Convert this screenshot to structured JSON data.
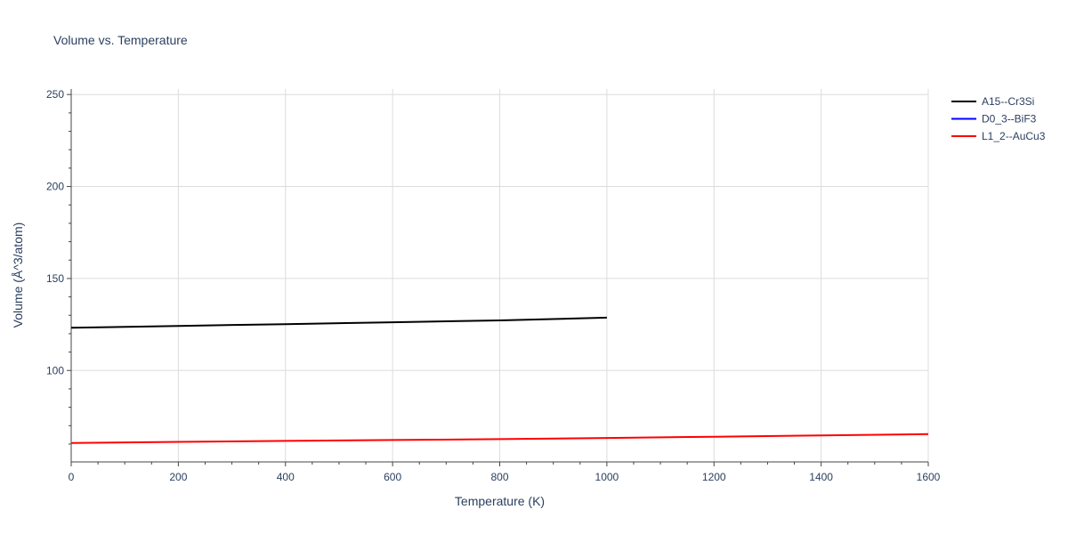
{
  "chart_data": {
    "type": "line",
    "title": "Volume vs. Temperature",
    "xlabel": "Temperature (K)",
    "ylabel": "Volume (Å^3/atom)",
    "xlim": [
      0,
      1600
    ],
    "ylim": [
      50.3,
      253
    ],
    "x_ticks": [
      0,
      200,
      400,
      600,
      800,
      1000,
      1200,
      1400,
      1600
    ],
    "y_ticks": [
      100,
      150,
      200,
      250
    ],
    "grid": true,
    "legend_position": "top-right",
    "series": [
      {
        "name": "A15--Cr3Si",
        "color": "#000000",
        "x": [
          0,
          200,
          400,
          600,
          800,
          1000
        ],
        "y": [
          123.2,
          124.2,
          125.2,
          126.2,
          127.2,
          128.7
        ]
      },
      {
        "name": "D0_3--BiF3",
        "color": "#0000ff",
        "x": [],
        "y": []
      },
      {
        "name": "L1_2--AuCu3",
        "color": "#ff0000",
        "x": [
          0,
          200,
          400,
          600,
          800,
          1000,
          1200,
          1400,
          1600
        ],
        "y": [
          60.6,
          61.2,
          61.7,
          62.2,
          62.7,
          63.3,
          64.0,
          64.7,
          65.4
        ]
      }
    ]
  }
}
